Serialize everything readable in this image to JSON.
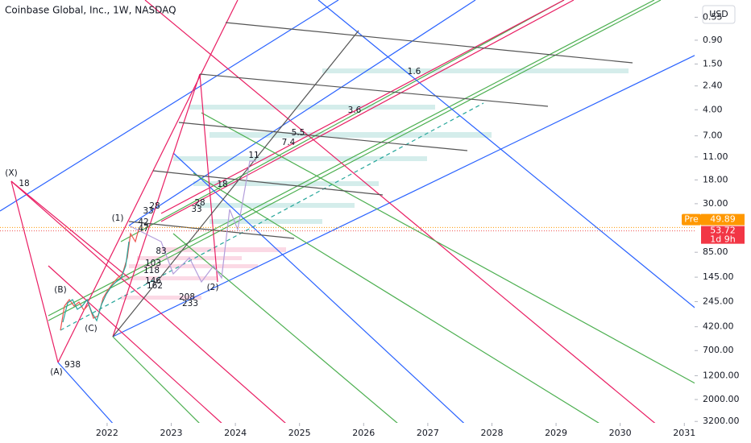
{
  "chart_data": {
    "type": "candlestick",
    "title": "Coinbase Global, Inc., 1W, NASDAQ",
    "currency": "USD",
    "log_scale": true,
    "inverted": true,
    "ylim": [
      0.38,
      3300
    ],
    "yticks": [
      0.55,
      {
        "value": 0.9,
        "label": "0.90"
      },
      {
        "value": 1.5,
        "label": "1.50"
      },
      {
        "value": 2.4,
        "label": "2.40"
      },
      {
        "value": 4,
        "label": "4.00"
      },
      {
        "value": 7,
        "label": "7.00"
      },
      {
        "value": 11,
        "label": "11.00"
      },
      {
        "value": 18,
        "label": "18.00"
      },
      {
        "value": 30,
        "label": "30.00"
      },
      {
        "value": 85,
        "label": "85.00"
      },
      {
        "value": 145,
        "label": "145.00"
      },
      {
        "value": 245,
        "label": "245.00"
      },
      {
        "value": 420,
        "label": "420.00"
      },
      {
        "value": 700,
        "label": "700.00"
      },
      {
        "value": 1200,
        "label": "1200.00"
      },
      {
        "value": 2000,
        "label": "2000.00"
      },
      {
        "value": 3200,
        "label": "3200.00"
      }
    ],
    "xlim": [
      2020.33,
      2031.16
    ],
    "xticks": [
      2022,
      2023,
      2024,
      2025,
      2026,
      2027,
      2028,
      2029,
      2030,
      2031
    ],
    "last_price": 53.72,
    "countdown": "1d 9h",
    "premarket": {
      "label": "Pre",
      "value": 49.89
    },
    "annotations": [
      "(X)",
      "18",
      "(A)",
      "938",
      "(B)",
      "(C)",
      "(1)",
      "(2)",
      "28",
      "33",
      "42",
      "47",
      "83",
      "103",
      "118",
      "146",
      "162",
      "208",
      "233",
      "28",
      "33",
      "11",
      "18",
      "5.5",
      "7.4",
      "3.6",
      "1.6"
    ]
  }
}
